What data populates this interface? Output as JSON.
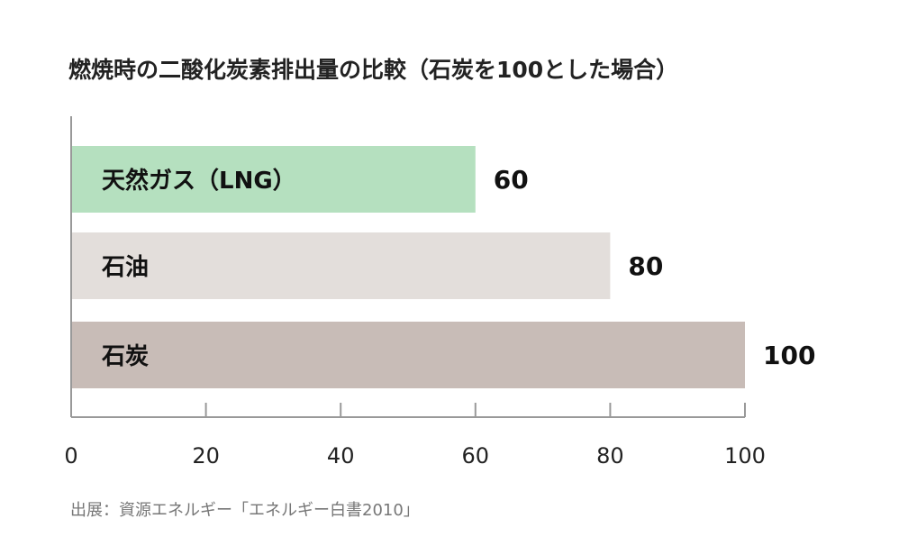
{
  "chart_data": {
    "type": "bar",
    "orientation": "horizontal",
    "title": "燃焼時の二酸化炭素排出量の比較（石炭を100とした場合）",
    "categories": [
      "天然ガス（LNG）",
      "石油",
      "石炭"
    ],
    "values": [
      60,
      80,
      100
    ],
    "value_labels": [
      "60",
      "80",
      "100"
    ],
    "colors": [
      "#b5e0bf",
      "#e3dedb",
      "#c8bcb7"
    ],
    "xlim": [
      0,
      100
    ],
    "xticks": [
      0,
      20,
      40,
      60,
      80,
      100
    ],
    "tick_labels": [
      "0",
      "20",
      "40",
      "60",
      "80",
      "100"
    ],
    "axis_color": "#999999",
    "grid": false,
    "legend": "none",
    "source": "出展：資源エネルギー「エネルギー白書2010」"
  }
}
